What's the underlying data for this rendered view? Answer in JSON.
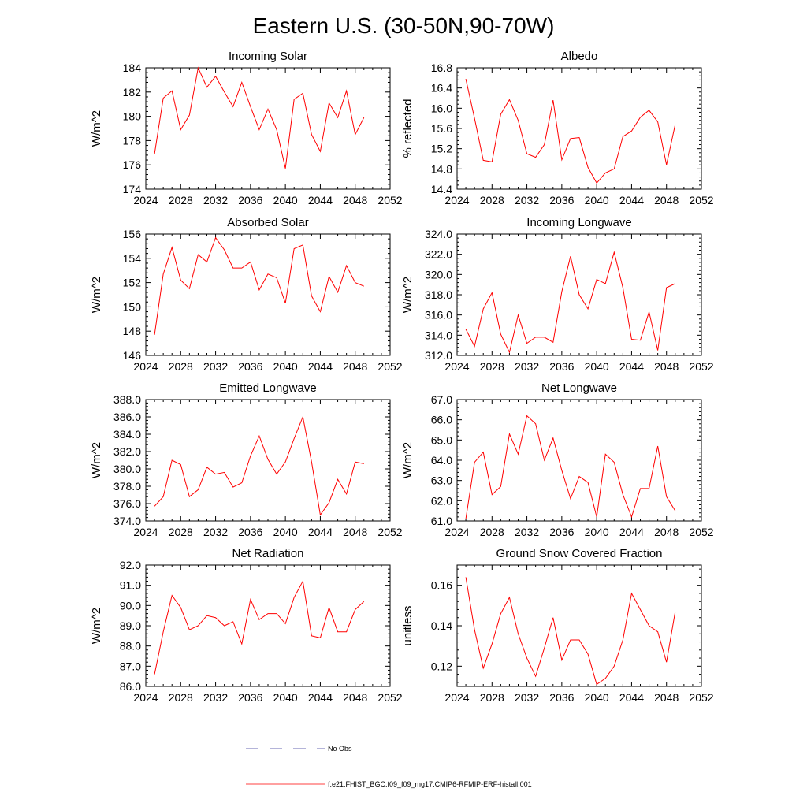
{
  "figure": {
    "title": "Eastern U.S. (30-50N,90-70W)"
  },
  "colors": {
    "model_line": "#ff0000",
    "obs_line": "#3a3a9a",
    "axis": "#000000"
  },
  "legend": {
    "obs_label": "No Obs",
    "model_label": "f.e21.FHIST_BGC.f09_f09_mg17.CMIP6-RFMIP-ERF-histall.001"
  },
  "chart_data": [
    {
      "type": "line",
      "title": "Incoming Solar",
      "ylabel": "W/m^2",
      "xlim": [
        2024,
        2052
      ],
      "ylim": [
        174,
        184
      ],
      "xticks": [
        2024,
        2028,
        2032,
        2036,
        2040,
        2044,
        2048,
        2052
      ],
      "yticks": [
        174,
        176,
        178,
        180,
        182,
        184
      ],
      "ytick_decimals": 0,
      "series": [
        {
          "x": [
            2025,
            2026,
            2027,
            2028,
            2029,
            2030,
            2031,
            2032,
            2033,
            2034,
            2035,
            2036,
            2037,
            2038,
            2039,
            2040,
            2041,
            2042,
            2043,
            2044,
            2045,
            2046,
            2047,
            2048,
            2049
          ],
          "values": [
            176.9,
            181.5,
            182.1,
            178.9,
            180.1,
            184.0,
            182.4,
            183.3,
            182.0,
            180.8,
            182.8,
            180.8,
            178.9,
            180.6,
            178.9,
            175.7,
            181.4,
            181.9,
            178.5,
            177.1,
            181.1,
            179.9,
            182.1,
            178.5,
            179.9
          ]
        }
      ]
    },
    {
      "type": "line",
      "title": "Albedo",
      "ylabel": "% reflected",
      "xlim": [
        2024,
        2052
      ],
      "ylim": [
        14.4,
        16.8
      ],
      "xticks": [
        2024,
        2028,
        2032,
        2036,
        2040,
        2044,
        2048,
        2052
      ],
      "yticks": [
        14.4,
        14.8,
        15.2,
        15.6,
        16.0,
        16.4,
        16.8
      ],
      "ytick_decimals": 1,
      "series": [
        {
          "x": [
            2025,
            2026,
            2027,
            2028,
            2029,
            2030,
            2031,
            2032,
            2033,
            2034,
            2035,
            2036,
            2037,
            2038,
            2039,
            2040,
            2041,
            2042,
            2043,
            2044,
            2045,
            2046,
            2047,
            2048,
            2049
          ],
          "values": [
            16.58,
            15.8,
            14.97,
            14.94,
            15.88,
            16.17,
            15.76,
            15.1,
            15.03,
            15.28,
            16.16,
            14.98,
            15.4,
            15.42,
            14.83,
            14.52,
            14.72,
            14.8,
            15.44,
            15.55,
            15.82,
            15.96,
            15.73,
            14.88,
            15.68
          ]
        }
      ]
    },
    {
      "type": "line",
      "title": "Absorbed Solar",
      "ylabel": "W/m^2",
      "xlim": [
        2024,
        2052
      ],
      "ylim": [
        146,
        156
      ],
      "xticks": [
        2024,
        2028,
        2032,
        2036,
        2040,
        2044,
        2048,
        2052
      ],
      "yticks": [
        146,
        148,
        150,
        152,
        154,
        156
      ],
      "ytick_decimals": 0,
      "series": [
        {
          "x": [
            2025,
            2026,
            2027,
            2028,
            2029,
            2030,
            2031,
            2032,
            2033,
            2034,
            2035,
            2036,
            2037,
            2038,
            2039,
            2040,
            2041,
            2042,
            2043,
            2044,
            2045,
            2046,
            2047,
            2048,
            2049
          ],
          "values": [
            147.7,
            152.7,
            154.9,
            152.2,
            151.5,
            154.3,
            153.7,
            155.7,
            154.7,
            153.2,
            153.2,
            153.7,
            151.4,
            152.7,
            152.4,
            150.3,
            154.8,
            155.1,
            150.9,
            149.6,
            152.5,
            151.2,
            153.4,
            152.0,
            151.7
          ]
        }
      ]
    },
    {
      "type": "line",
      "title": "Incoming Longwave",
      "ylabel": "W/m^2",
      "xlim": [
        2024,
        2052
      ],
      "ylim": [
        312,
        324
      ],
      "xticks": [
        2024,
        2028,
        2032,
        2036,
        2040,
        2044,
        2048,
        2052
      ],
      "yticks": [
        312,
        314,
        316,
        318,
        320,
        322,
        324
      ],
      "ytick_decimals": 1,
      "series": [
        {
          "x": [
            2025,
            2026,
            2027,
            2028,
            2029,
            2030,
            2031,
            2032,
            2033,
            2034,
            2035,
            2036,
            2037,
            2038,
            2039,
            2040,
            2041,
            2042,
            2043,
            2044,
            2045,
            2046,
            2047,
            2048,
            2049
          ],
          "values": [
            314.6,
            312.9,
            316.6,
            318.2,
            314.1,
            312.3,
            316.0,
            313.2,
            313.8,
            313.8,
            313.3,
            318.3,
            321.8,
            318.0,
            316.6,
            319.5,
            319.1,
            322.2,
            318.7,
            313.6,
            313.5,
            316.3,
            312.5,
            318.7,
            319.1
          ]
        }
      ]
    },
    {
      "type": "line",
      "title": "Emitted Longwave",
      "ylabel": "W/m^2",
      "xlim": [
        2024,
        2052
      ],
      "ylim": [
        374,
        388
      ],
      "xticks": [
        2024,
        2028,
        2032,
        2036,
        2040,
        2044,
        2048,
        2052
      ],
      "yticks": [
        374,
        376,
        378,
        380,
        382,
        384,
        386,
        388
      ],
      "ytick_decimals": 1,
      "series": [
        {
          "x": [
            2025,
            2026,
            2027,
            2028,
            2029,
            2030,
            2031,
            2032,
            2033,
            2034,
            2035,
            2036,
            2037,
            2038,
            2039,
            2040,
            2041,
            2042,
            2043,
            2044,
            2045,
            2046,
            2047,
            2048,
            2049
          ],
          "values": [
            375.7,
            376.8,
            381.0,
            380.5,
            376.8,
            377.6,
            380.2,
            379.4,
            379.6,
            377.9,
            378.4,
            381.5,
            383.8,
            381.1,
            379.4,
            380.8,
            383.5,
            386.0,
            380.8,
            374.7,
            376.1,
            378.8,
            377.1,
            380.8,
            380.6
          ]
        }
      ]
    },
    {
      "type": "line",
      "title": "Net Longwave",
      "ylabel": "W/m^2",
      "xlim": [
        2024,
        2052
      ],
      "ylim": [
        61,
        67
      ],
      "xticks": [
        2024,
        2028,
        2032,
        2036,
        2040,
        2044,
        2048,
        2052
      ],
      "yticks": [
        61,
        62,
        63,
        64,
        65,
        66,
        67
      ],
      "ytick_decimals": 1,
      "series": [
        {
          "x": [
            2025,
            2026,
            2027,
            2028,
            2029,
            2030,
            2031,
            2032,
            2033,
            2034,
            2035,
            2036,
            2037,
            2038,
            2039,
            2040,
            2041,
            2042,
            2043,
            2044,
            2045,
            2046,
            2047,
            2048,
            2049
          ],
          "values": [
            61.1,
            63.9,
            64.4,
            62.3,
            62.7,
            65.3,
            64.3,
            66.2,
            65.8,
            64.0,
            65.1,
            63.5,
            62.1,
            63.2,
            62.9,
            61.2,
            64.3,
            63.9,
            62.3,
            61.2,
            62.6,
            62.6,
            64.7,
            62.2,
            61.5
          ]
        }
      ]
    },
    {
      "type": "line",
      "title": "Net Radiation",
      "ylabel": "W/m^2",
      "xlim": [
        2024,
        2052
      ],
      "ylim": [
        86,
        92
      ],
      "xticks": [
        2024,
        2028,
        2032,
        2036,
        2040,
        2044,
        2048,
        2052
      ],
      "yticks": [
        86,
        87,
        88,
        89,
        90,
        91,
        92
      ],
      "ytick_decimals": 1,
      "series": [
        {
          "x": [
            2025,
            2026,
            2027,
            2028,
            2029,
            2030,
            2031,
            2032,
            2033,
            2034,
            2035,
            2036,
            2037,
            2038,
            2039,
            2040,
            2041,
            2042,
            2043,
            2044,
            2045,
            2046,
            2047,
            2048,
            2049
          ],
          "values": [
            86.6,
            88.7,
            90.5,
            89.9,
            88.8,
            89.0,
            89.5,
            89.4,
            89.0,
            89.2,
            88.1,
            90.3,
            89.3,
            89.6,
            89.6,
            89.1,
            90.4,
            91.2,
            88.5,
            88.4,
            89.9,
            88.7,
            88.7,
            89.8,
            90.2
          ]
        }
      ]
    },
    {
      "type": "line",
      "title": "Ground Snow Covered Fraction",
      "ylabel": "unitless",
      "xlim": [
        2024,
        2052
      ],
      "ylim": [
        0.11,
        0.17
      ],
      "xticks": [
        2024,
        2028,
        2032,
        2036,
        2040,
        2044,
        2048,
        2052
      ],
      "yticks": [
        0.12,
        0.14,
        0.16
      ],
      "ytick_decimals": 2,
      "series": [
        {
          "x": [
            2025,
            2026,
            2027,
            2028,
            2029,
            2030,
            2031,
            2032,
            2033,
            2034,
            2035,
            2036,
            2037,
            2038,
            2039,
            2040,
            2041,
            2042,
            2043,
            2044,
            2045,
            2046,
            2047,
            2048,
            2049
          ],
          "values": [
            0.164,
            0.138,
            0.119,
            0.131,
            0.146,
            0.154,
            0.136,
            0.124,
            0.115,
            0.129,
            0.144,
            0.123,
            0.133,
            0.133,
            0.126,
            0.111,
            0.114,
            0.12,
            0.133,
            0.156,
            0.148,
            0.14,
            0.137,
            0.122,
            0.147
          ]
        }
      ]
    }
  ]
}
